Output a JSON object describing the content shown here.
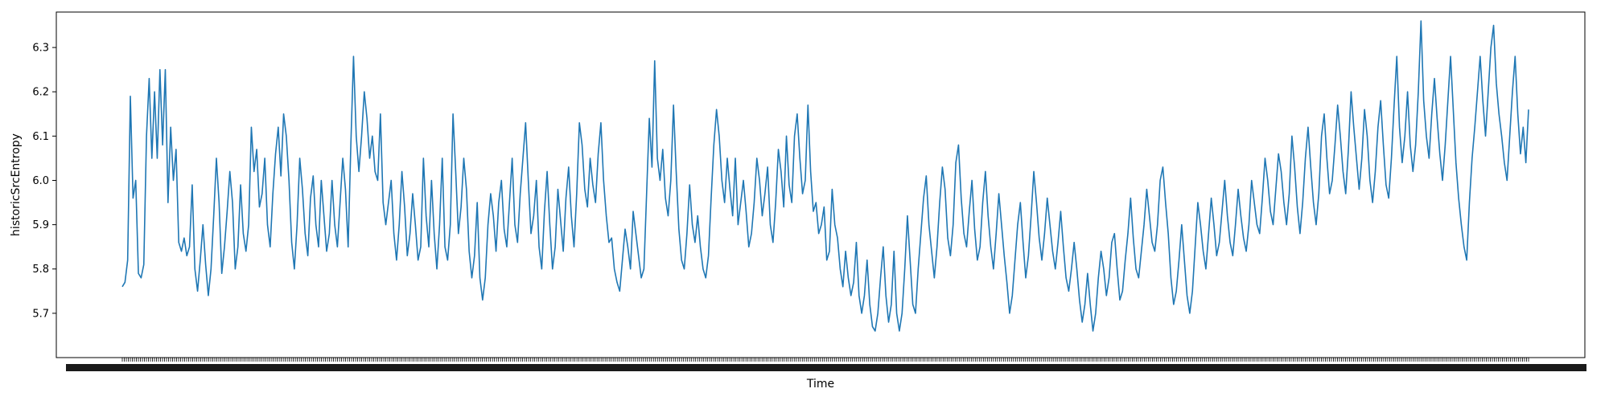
{
  "chart_data": {
    "type": "line",
    "title": "",
    "xlabel": "Time",
    "ylabel": "historicSrcEntropy",
    "ylim": [
      5.6,
      6.38
    ],
    "yticks": [
      "5.7",
      "5.8",
      "5.9",
      "6.0",
      "6.1",
      "6.2",
      "6.3"
    ],
    "grid": false,
    "x_tick_labels_overlapping": true,
    "line_color": "#1f77b4",
    "series": [
      {
        "values": [
          5.76,
          5.77,
          5.82,
          6.19,
          5.96,
          6.0,
          5.79,
          5.78,
          5.81,
          6.1,
          6.23,
          6.05,
          6.2,
          6.05,
          6.25,
          6.08,
          6.25,
          5.95,
          6.12,
          6.0,
          6.07,
          5.86,
          5.84,
          5.87,
          5.83,
          5.85,
          5.99,
          5.8,
          5.75,
          5.82,
          5.9,
          5.81,
          5.74,
          5.8,
          5.92,
          6.05,
          5.95,
          5.79,
          5.85,
          5.93,
          6.02,
          5.95,
          5.8,
          5.85,
          5.99,
          5.88,
          5.84,
          5.9,
          6.12,
          6.02,
          6.07,
          5.94,
          5.97,
          6.05,
          5.9,
          5.85,
          5.97,
          6.06,
          6.12,
          6.01,
          6.15,
          6.1,
          6.0,
          5.86,
          5.8,
          5.9,
          6.05,
          5.98,
          5.88,
          5.83,
          5.96,
          6.01,
          5.9,
          5.85,
          6.0,
          5.92,
          5.84,
          5.88,
          6.0,
          5.9,
          5.85,
          5.95,
          6.05,
          5.98,
          5.85,
          6.08,
          6.28,
          6.1,
          6.02,
          6.1,
          6.2,
          6.14,
          6.05,
          6.1,
          6.02,
          6.0,
          6.15,
          5.95,
          5.9,
          5.95,
          6.0,
          5.88,
          5.82,
          5.9,
          6.02,
          5.94,
          5.83,
          5.88,
          5.97,
          5.9,
          5.82,
          5.85,
          6.05,
          5.92,
          5.85,
          6.0,
          5.88,
          5.8,
          5.9,
          6.05,
          5.85,
          5.82,
          5.9,
          6.15,
          6.02,
          5.88,
          5.94,
          6.05,
          5.98,
          5.84,
          5.78,
          5.83,
          5.95,
          5.78,
          5.73,
          5.78,
          5.9,
          5.97,
          5.92,
          5.84,
          5.95,
          6.0,
          5.89,
          5.85,
          5.95,
          6.05,
          5.9,
          5.86,
          5.97,
          6.05,
          6.13,
          6.0,
          5.88,
          5.92,
          6.0,
          5.85,
          5.8,
          5.93,
          6.02,
          5.9,
          5.8,
          5.85,
          5.98,
          5.91,
          5.84,
          5.96,
          6.03,
          5.92,
          5.85,
          5.97,
          6.13,
          6.08,
          5.98,
          5.94,
          6.05,
          5.99,
          5.95,
          6.06,
          6.13,
          6.0,
          5.92,
          5.86,
          5.87,
          5.8,
          5.77,
          5.75,
          5.82,
          5.89,
          5.85,
          5.8,
          5.93,
          5.88,
          5.83,
          5.78,
          5.8,
          5.97,
          6.14,
          6.03,
          6.27,
          6.05,
          6.0,
          6.07,
          5.96,
          5.92,
          6.0,
          6.17,
          6.02,
          5.89,
          5.82,
          5.8,
          5.88,
          5.99,
          5.9,
          5.86,
          5.92,
          5.85,
          5.8,
          5.78,
          5.83,
          5.96,
          6.08,
          6.16,
          6.1,
          6.0,
          5.95,
          6.05,
          5.98,
          5.92,
          6.05,
          5.9,
          5.95,
          6.0,
          5.93,
          5.85,
          5.88,
          5.95,
          6.05,
          6.0,
          5.92,
          5.97,
          6.03,
          5.9,
          5.86,
          5.95,
          6.07,
          6.02,
          5.94,
          6.1,
          5.99,
          5.95,
          6.1,
          6.15,
          6.05,
          5.97,
          6.0,
          6.17,
          6.02,
          5.93,
          5.95,
          5.88,
          5.9,
          5.94,
          5.82,
          5.84,
          5.98,
          5.9,
          5.87,
          5.8,
          5.76,
          5.84,
          5.78,
          5.74,
          5.77,
          5.86,
          5.74,
          5.7,
          5.74,
          5.82,
          5.72,
          5.67,
          5.66,
          5.7,
          5.78,
          5.85,
          5.74,
          5.68,
          5.72,
          5.84,
          5.7,
          5.66,
          5.7,
          5.8,
          5.92,
          5.82,
          5.72,
          5.7,
          5.8,
          5.88,
          5.96,
          6.01,
          5.9,
          5.84,
          5.78,
          5.85,
          5.95,
          6.03,
          5.98,
          5.87,
          5.83,
          5.9,
          6.04,
          6.08,
          5.96,
          5.88,
          5.85,
          5.93,
          6.0,
          5.89,
          5.82,
          5.85,
          5.95,
          6.02,
          5.92,
          5.85,
          5.8,
          5.88,
          5.97,
          5.9,
          5.83,
          5.77,
          5.7,
          5.74,
          5.82,
          5.9,
          5.95,
          5.86,
          5.78,
          5.83,
          5.92,
          6.02,
          5.95,
          5.87,
          5.82,
          5.88,
          5.96,
          5.9,
          5.84,
          5.8,
          5.86,
          5.93,
          5.85,
          5.78,
          5.75,
          5.8,
          5.86,
          5.8,
          5.73,
          5.68,
          5.72,
          5.79,
          5.72,
          5.66,
          5.7,
          5.78,
          5.84,
          5.8,
          5.74,
          5.78,
          5.86,
          5.88,
          5.8,
          5.73,
          5.75,
          5.82,
          5.88,
          5.96,
          5.87,
          5.8,
          5.78,
          5.84,
          5.9,
          5.98,
          5.92,
          5.86,
          5.84,
          5.9,
          6.0,
          6.03,
          5.95,
          5.88,
          5.78,
          5.72,
          5.75,
          5.82,
          5.9,
          5.82,
          5.74,
          5.7,
          5.75,
          5.85,
          5.95,
          5.9,
          5.84,
          5.8,
          5.88,
          5.96,
          5.9,
          5.83,
          5.86,
          5.93,
          6.0,
          5.92,
          5.86,
          5.83,
          5.9,
          5.98,
          5.92,
          5.87,
          5.84,
          5.9,
          6.0,
          5.95,
          5.9,
          5.88,
          5.96,
          6.05,
          6.0,
          5.93,
          5.9,
          5.98,
          6.06,
          6.02,
          5.95,
          5.9,
          5.97,
          6.1,
          6.03,
          5.94,
          5.88,
          5.95,
          6.05,
          6.12,
          6.03,
          5.95,
          5.9,
          5.97,
          6.1,
          6.15,
          6.05,
          5.97,
          6.0,
          6.08,
          6.17,
          6.1,
          6.02,
          5.97,
          6.07,
          6.2,
          6.12,
          6.05,
          5.98,
          6.05,
          6.16,
          6.1,
          6.0,
          5.95,
          6.02,
          6.12,
          6.18,
          6.08,
          5.99,
          5.96,
          6.05,
          6.17,
          6.28,
          6.12,
          6.04,
          6.1,
          6.2,
          6.08,
          6.02,
          6.08,
          6.2,
          6.36,
          6.18,
          6.1,
          6.05,
          6.15,
          6.23,
          6.14,
          6.06,
          6.0,
          6.08,
          6.18,
          6.28,
          6.16,
          6.04,
          5.96,
          5.9,
          5.85,
          5.82,
          5.95,
          6.05,
          6.12,
          6.2,
          6.28,
          6.18,
          6.1,
          6.2,
          6.3,
          6.35,
          6.22,
          6.15,
          6.1,
          6.04,
          6.0,
          6.1,
          6.2,
          6.28,
          6.15,
          6.06,
          6.12,
          6.04,
          6.16
        ]
      }
    ]
  }
}
